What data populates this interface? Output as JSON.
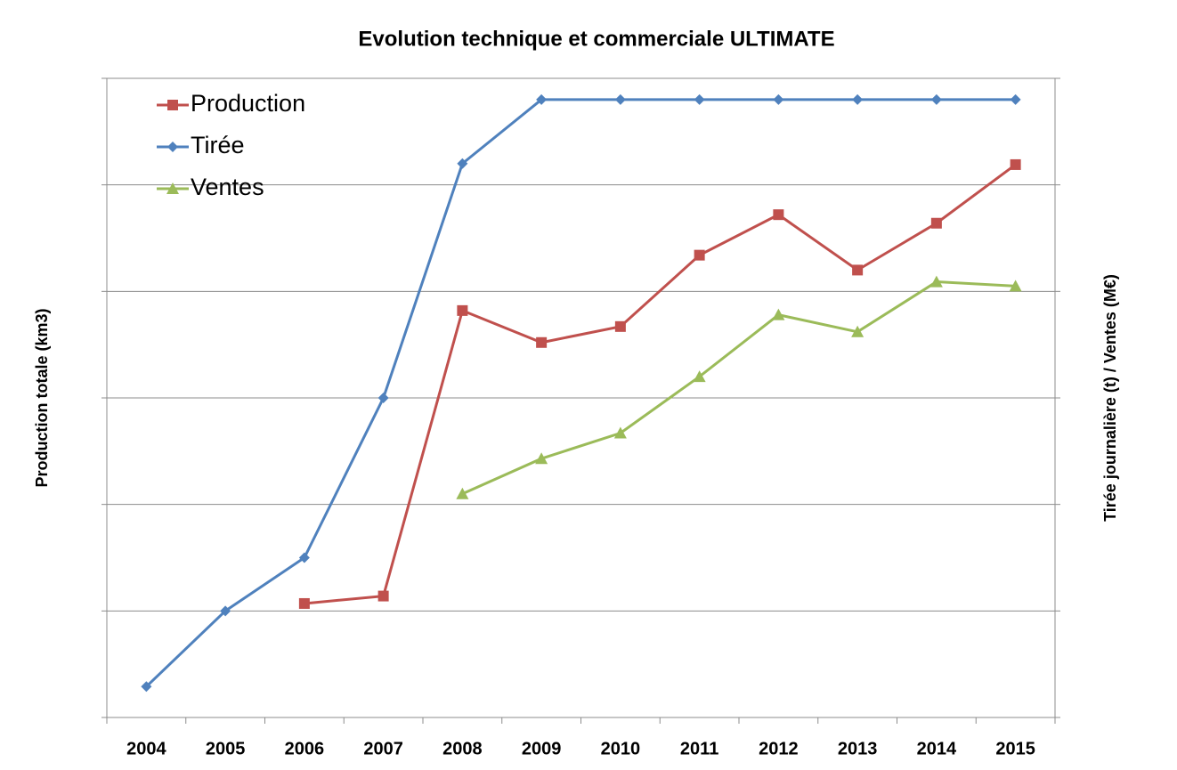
{
  "chart_data": {
    "type": "line",
    "title": "Evolution technique et commerciale ULTIMATE",
    "ylabel": "Production totale (km3)",
    "y2label": "Tirée journalière (t) / Ventes (M€)",
    "categories": [
      "2004",
      "2005",
      "2006",
      "2007",
      "2008",
      "2009",
      "2010",
      "2011",
      "2012",
      "2013",
      "2014",
      "2015"
    ],
    "series": [
      {
        "name": "Production",
        "color": "#c0504d",
        "marker": "square",
        "axis": "y",
        "values": [
          null,
          null,
          1.07,
          1.14,
          3.82,
          3.52,
          3.67,
          4.34,
          4.72,
          4.2,
          4.64,
          5.19
        ]
      },
      {
        "name": "Tirée",
        "color": "#4f81bd",
        "marker": "diamond",
        "axis": "y2",
        "values": [
          0.29,
          1.0,
          1.5,
          3.0,
          5.2,
          5.8,
          5.8,
          5.8,
          5.8,
          5.8,
          5.8,
          5.8
        ]
      },
      {
        "name": "Ventes",
        "color": "#9bbb59",
        "marker": "triangle",
        "axis": "y2",
        "values": [
          null,
          null,
          null,
          null,
          2.1,
          2.43,
          2.67,
          3.2,
          3.78,
          3.62,
          4.09,
          4.05
        ]
      }
    ],
    "ylim": [
      0,
      6
    ],
    "yticks": [
      0,
      1,
      2,
      3,
      4,
      5,
      6
    ],
    "y2lim": [
      0,
      6
    ],
    "y2ticks": [
      0,
      1,
      2,
      3,
      4,
      5,
      6
    ],
    "grid": true,
    "legend": "upper left"
  }
}
